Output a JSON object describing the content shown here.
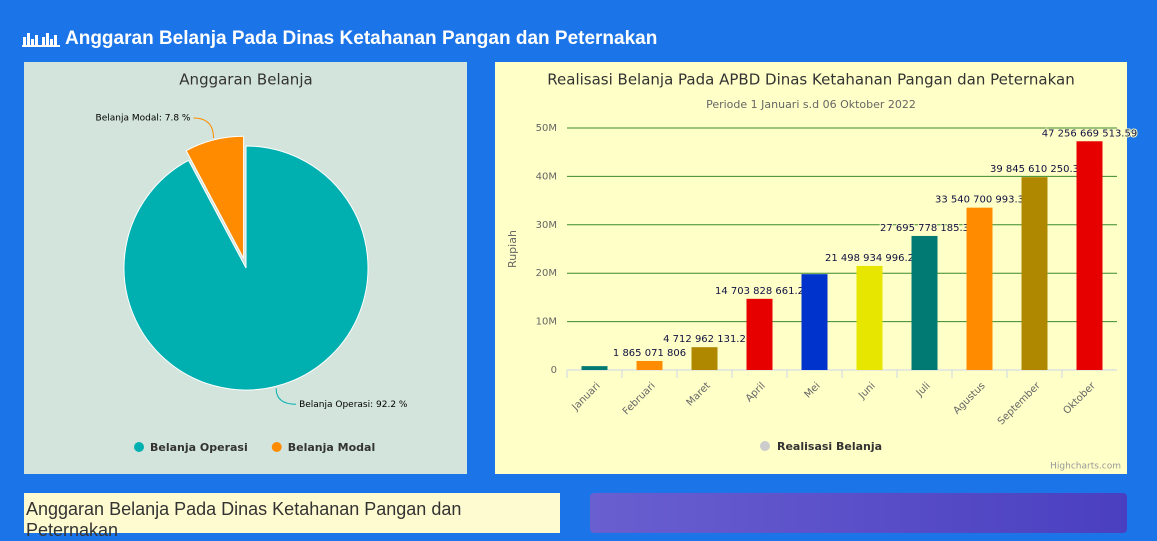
{
  "header": {
    "title": "Anggaran Belanja Pada Dinas Ketahanan Pangan dan Peternakan"
  },
  "bottom_card": {
    "title": "Anggaran Belanja Pada Dinas Ketahanan Pangan dan Peternakan"
  },
  "chart_data": [
    {
      "type": "pie",
      "title": "Anggaran Belanja",
      "categories": [
        "Belanja Operasi",
        "Belanja Modal"
      ],
      "values": [
        92.2,
        7.8
      ],
      "value_labels": [
        "Belanja Operasi: 92.2 %",
        "Belanja Modal: 7.8 %"
      ],
      "colors": [
        "#00b0b0",
        "#ff8c00"
      ],
      "legend": "bottom"
    },
    {
      "type": "bar",
      "title": "Realisasi Belanja Pada APBD Dinas Ketahanan Pangan dan Peternakan",
      "subtitle": "Periode 1 Januari s.d 06 Oktober 2022",
      "y_label": "Rupiah",
      "credits": "Highcharts.com",
      "categories": [
        "Januari",
        "Februari",
        "Maret",
        "April",
        "Mei",
        "Juni",
        "Juli",
        "Agustus",
        "September",
        "Oktober"
      ],
      "series": [
        {
          "name": "Realisasi Belanja",
          "color": "#cccccc",
          "values": [
            800000000,
            1865071806,
            4712962131.2,
            14703828661.2,
            19800000000,
            21498934996.2,
            27695778185.3,
            33540700993.3,
            39845610250.3,
            47256669513.59
          ],
          "value_labels": [
            null,
            "1 865 071 806",
            "4 712 962 131.2",
            "14 703 828 661.2",
            null,
            "21 498 934 996.2",
            "27 695 778 185.3",
            "33 540 700 993.3",
            "39 845 610 250.3",
            "47 256 669 513.59"
          ],
          "colors": [
            "#007a73",
            "#ff8c00",
            "#b08800",
            "#e60000",
            "#0033cc",
            "#e6e600",
            "#007a73",
            "#ff8c00",
            "#b08800",
            "#e60000"
          ]
        }
      ],
      "ylim": [
        0,
        50000000000
      ],
      "yticks": [
        0,
        {
          "value": 10000000000,
          "label": "10M"
        },
        {
          "value": 20000000000,
          "label": "20M"
        },
        {
          "value": 30000000000,
          "label": "30M"
        },
        {
          "value": 40000000000,
          "label": "40M"
        },
        {
          "value": 50000000000,
          "label": "50M"
        }
      ],
      "grid": true,
      "legend": "bottom"
    }
  ]
}
